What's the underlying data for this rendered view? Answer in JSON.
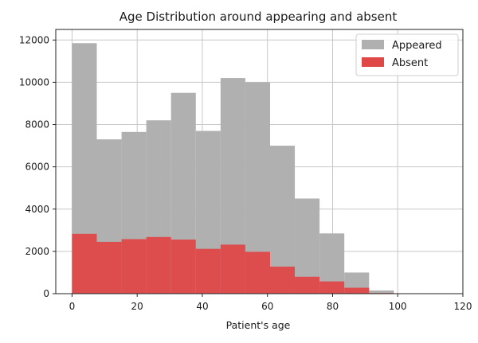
{
  "chart_data": {
    "type": "bar",
    "title": "Age Distribution around appearing and absent",
    "xlabel": "Patient's age",
    "ylabel": "",
    "xlim": [
      -5,
      120
    ],
    "ylim": [
      0,
      12500
    ],
    "xticks": [
      0,
      20,
      40,
      60,
      80,
      100,
      120
    ],
    "yticks": [
      0,
      2000,
      4000,
      6000,
      8000,
      10000,
      12000
    ],
    "grid": true,
    "legend_position": "top-right",
    "bin_edges": [
      0,
      7.6,
      15.2,
      22.8,
      30.4,
      38,
      45.6,
      53.2,
      60.8,
      68.4,
      76,
      83.6,
      91.2,
      98.8,
      106.4,
      114
    ],
    "series": [
      {
        "name": "Appeared",
        "color": "#b0b0b0",
        "values": [
          11850,
          7300,
          7650,
          8200,
          9500,
          7700,
          10200,
          10000,
          7000,
          4500,
          2850,
          1000,
          150,
          20,
          5
        ]
      },
      {
        "name": "Absent",
        "color": "#e04848",
        "values": [
          2830,
          2450,
          2580,
          2680,
          2560,
          2120,
          2320,
          1980,
          1280,
          800,
          580,
          280,
          30,
          5,
          0
        ]
      }
    ]
  }
}
